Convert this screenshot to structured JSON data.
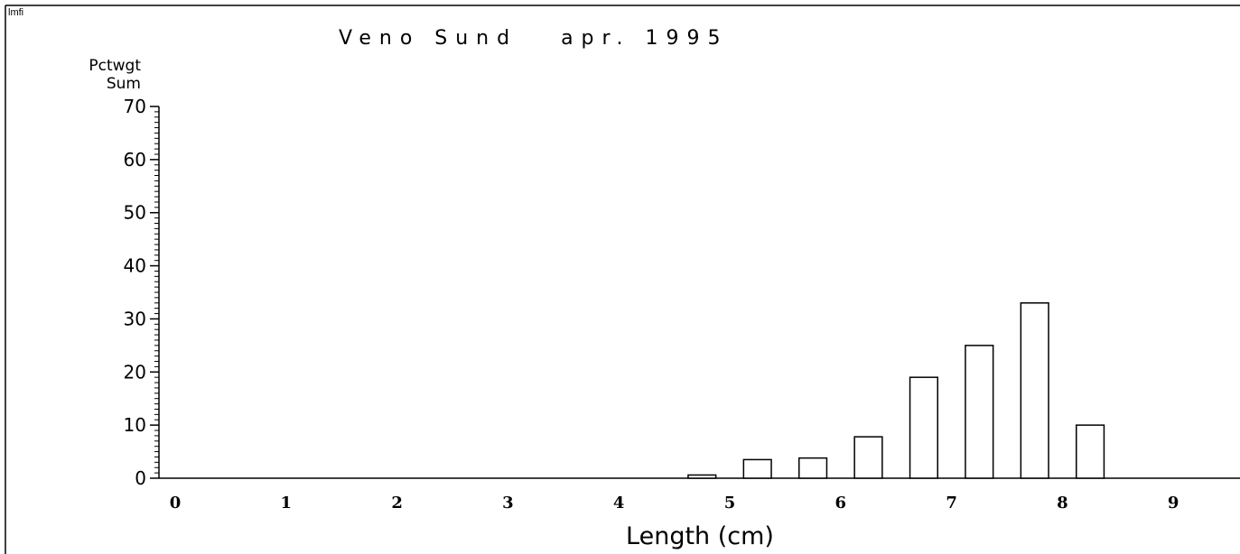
{
  "corner_label": "lmfi",
  "chart_data": {
    "type": "bar",
    "title": "Veno Sund   apr. 1995",
    "ylabel_line1": "Pctwgt",
    "ylabel_line2": "Sum",
    "xlabel": "Length (cm)",
    "ylim": [
      0,
      70
    ],
    "yticks": [
      0,
      10,
      20,
      30,
      40,
      50,
      60,
      70
    ],
    "xlim": [
      0,
      9.6
    ],
    "xticks": [
      0,
      1,
      2,
      3,
      4,
      5,
      6,
      7,
      8,
      9
    ],
    "grid": false,
    "bar_width": 0.25,
    "bars": [
      {
        "x": 4.75,
        "value": 0.6
      },
      {
        "x": 5.25,
        "value": 3.5
      },
      {
        "x": 5.75,
        "value": 3.8
      },
      {
        "x": 6.25,
        "value": 7.8
      },
      {
        "x": 6.75,
        "value": 19.0
      },
      {
        "x": 7.25,
        "value": 25.0
      },
      {
        "x": 7.75,
        "value": 33.0
      },
      {
        "x": 8.25,
        "value": 10.0
      }
    ],
    "colors": {
      "bar_fill": "#ffffff",
      "bar_stroke": "#000000"
    }
  }
}
